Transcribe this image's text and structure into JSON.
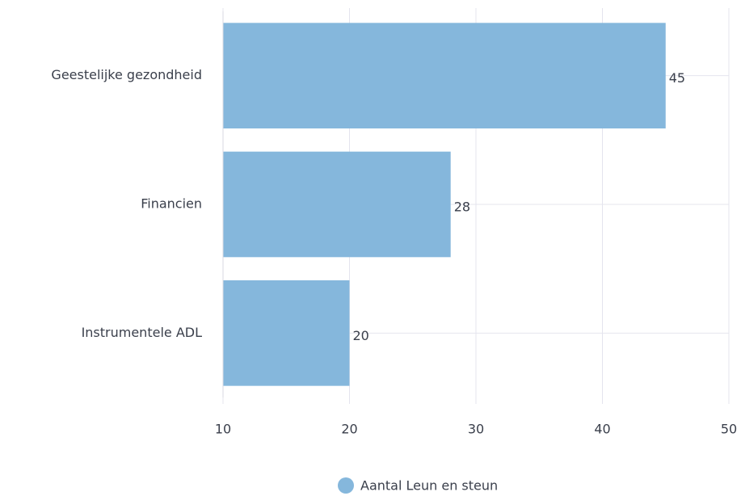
{
  "chart_data": {
    "type": "bar",
    "orientation": "horizontal",
    "categories": [
      "Geestelijke gezondheid",
      "Financien",
      "Instrumentele ADL"
    ],
    "series": [
      {
        "name": "Aantal Leun en steun",
        "color": "#85b7dc",
        "values": [
          45,
          28,
          20
        ]
      }
    ],
    "xlim": [
      10,
      50
    ],
    "xticks": [
      10,
      20,
      30,
      40,
      50
    ],
    "grid": true,
    "legend": "bottom"
  }
}
